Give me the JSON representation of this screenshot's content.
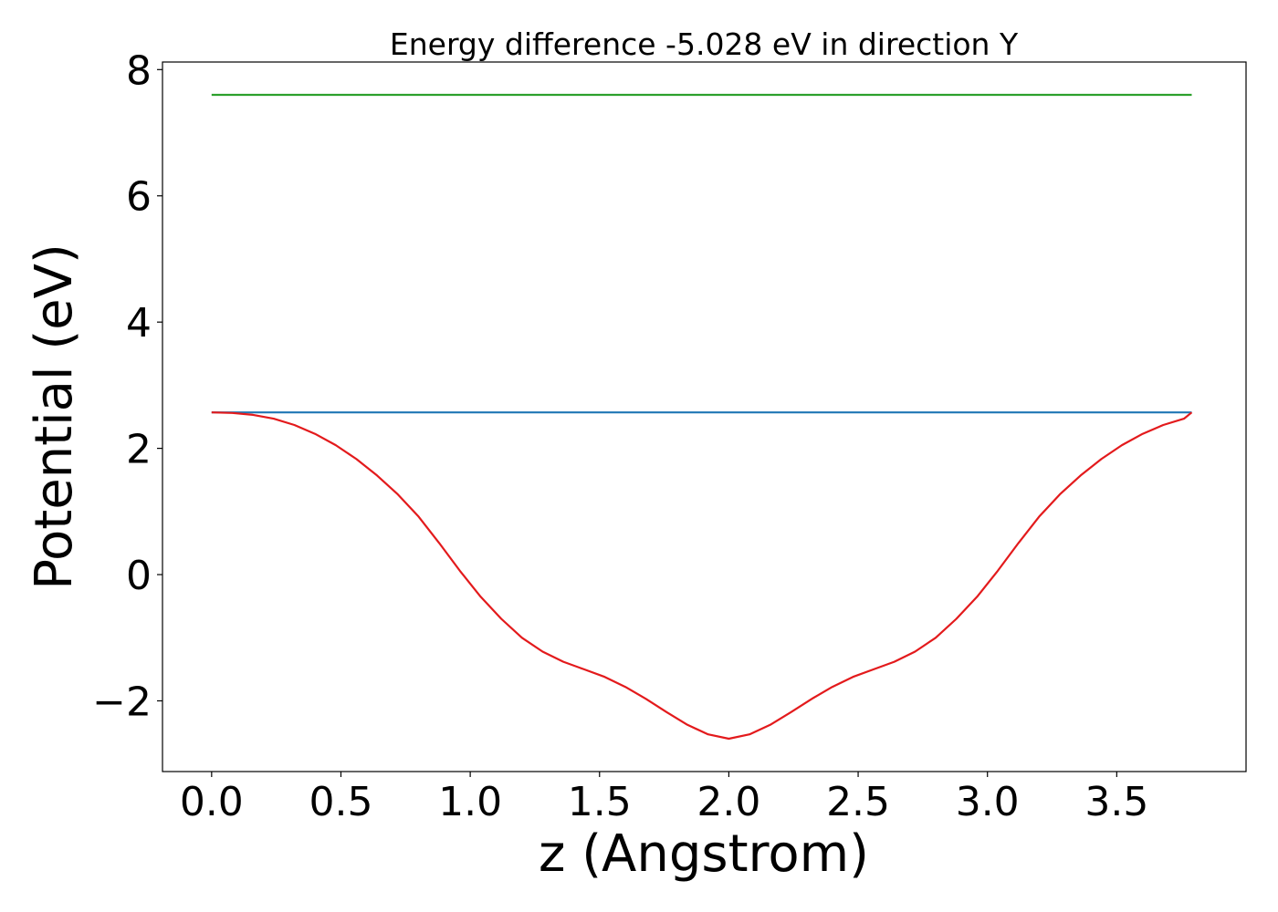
{
  "chart_data": {
    "type": "line",
    "title": "Energy difference -5.028 eV in direction Y",
    "xlabel": "z (Angstrom)",
    "ylabel": "Potential (eV)",
    "xlim": [
      -0.19,
      4.0
    ],
    "ylim": [
      -3.12,
      8.12
    ],
    "x_ticks": [
      0.0,
      0.5,
      1.0,
      1.5,
      2.0,
      2.5,
      3.0,
      3.5
    ],
    "x_tick_labels": [
      "0.0",
      "0.5",
      "1.0",
      "1.5",
      "2.0",
      "2.5",
      "3.0",
      "3.5"
    ],
    "y_ticks": [
      -2,
      0,
      2,
      4,
      6,
      8
    ],
    "y_tick_labels": [
      "−2",
      "0",
      "2",
      "4",
      "6",
      "8"
    ],
    "grid": false,
    "series": [
      {
        "color": "#2ca02c",
        "x": [
          0.0,
          3.79
        ],
        "y": [
          7.6,
          7.6
        ]
      },
      {
        "color": "#1f77b4",
        "x": [
          0.0,
          3.79
        ],
        "y": [
          2.57,
          2.57
        ]
      },
      {
        "color": "#e31a1c",
        "x": [
          0.0,
          0.08,
          0.16,
          0.24,
          0.32,
          0.4,
          0.48,
          0.56,
          0.64,
          0.72,
          0.8,
          0.88,
          0.96,
          1.04,
          1.12,
          1.2,
          1.28,
          1.36,
          1.44,
          1.52,
          1.6,
          1.68,
          1.76,
          1.84,
          1.92,
          2.0,
          2.08,
          2.16,
          2.24,
          2.32,
          2.4,
          2.48,
          2.56,
          2.64,
          2.72,
          2.8,
          2.88,
          2.96,
          3.04,
          3.12,
          3.2,
          3.28,
          3.36,
          3.44,
          3.52,
          3.6,
          3.68,
          3.76,
          3.79
        ],
        "y": [
          2.57,
          2.56,
          2.53,
          2.47,
          2.37,
          2.23,
          2.05,
          1.83,
          1.57,
          1.27,
          0.92,
          0.5,
          0.06,
          -0.35,
          -0.7,
          -1.0,
          -1.22,
          -1.38,
          -1.5,
          -1.62,
          -1.78,
          -1.97,
          -2.18,
          -2.38,
          -2.53,
          -2.6,
          -2.53,
          -2.38,
          -2.18,
          -1.97,
          -1.78,
          -1.62,
          -1.5,
          -1.38,
          -1.22,
          -1.0,
          -0.7,
          -0.35,
          0.06,
          0.5,
          0.92,
          1.27,
          1.57,
          1.83,
          2.05,
          2.23,
          2.37,
          2.47,
          2.57
        ]
      }
    ]
  }
}
